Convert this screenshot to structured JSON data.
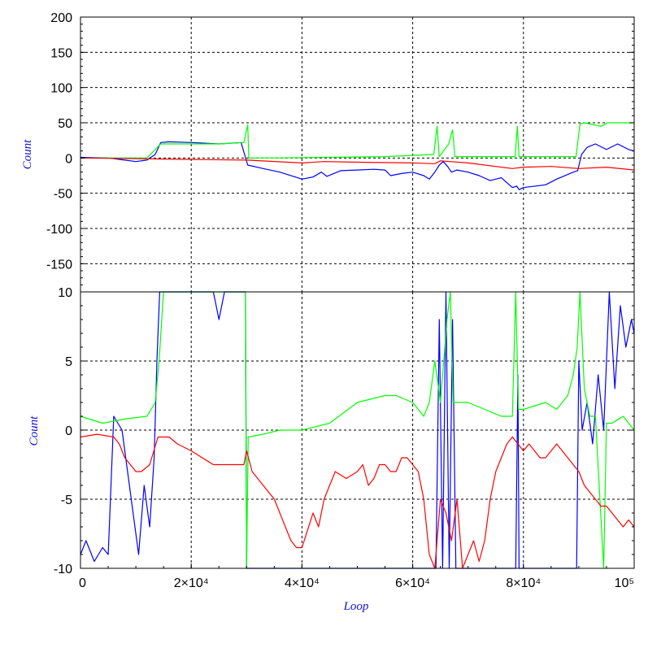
{
  "chart_data": [
    {
      "type": "line",
      "ylabel": "Count",
      "xlabel": "",
      "xlim": [
        0,
        100000
      ],
      "ylim": [
        -190,
        200
      ],
      "grid": true,
      "yticks": [
        "200",
        "150",
        "100",
        "50",
        "0",
        "-50",
        "-100",
        "-150"
      ],
      "ytick_values": [
        200,
        150,
        100,
        50,
        0,
        -50,
        -100,
        -150
      ],
      "series": [
        {
          "color": "#0000ff",
          "x": [
            0,
            5000,
            8000,
            10000,
            12000,
            13500,
            14500,
            16000,
            20000,
            25000,
            29000,
            30200,
            33000,
            36000,
            40000,
            42000,
            43500,
            44500,
            47000,
            50000,
            53000,
            55000,
            56000,
            58000,
            60000,
            62000,
            63000,
            64000,
            64800,
            65500,
            66300,
            67000,
            68000,
            70000,
            72000,
            74000,
            76000,
            78000,
            78800,
            79200,
            80000,
            84000,
            86000,
            89000,
            89800,
            90500,
            91500,
            93000,
            95000,
            97000,
            99000,
            100000
          ],
          "y": [
            1,
            0,
            -3,
            -5,
            -3,
            5,
            22,
            23,
            22,
            20,
            22,
            -10,
            -15,
            -20,
            -30,
            -27,
            -20,
            -26,
            -18,
            -17,
            -16,
            -17,
            -25,
            -22,
            -20,
            -25,
            -30,
            -20,
            -10,
            -5,
            -12,
            -20,
            -17,
            -20,
            -25,
            -32,
            -28,
            -42,
            -40,
            -45,
            -42,
            -38,
            -30,
            -20,
            -18,
            5,
            15,
            20,
            12,
            20,
            12,
            10
          ]
        },
        {
          "color": "#00ff00",
          "x": [
            0,
            12000,
            14500,
            20000,
            25000,
            29500,
            30200,
            30400,
            35000,
            45000,
            55000,
            63800,
            64400,
            64800,
            66500,
            67200,
            67600,
            70000,
            78500,
            78900,
            79200,
            85000,
            89500,
            90200,
            91000,
            94000,
            94800,
            95200,
            100000
          ],
          "y": [
            0,
            0,
            20,
            20,
            20,
            22,
            47,
            0,
            0,
            1,
            2,
            5,
            45,
            2,
            20,
            40,
            2,
            2,
            2,
            45,
            2,
            2,
            2,
            48,
            50,
            45,
            48,
            50,
            50
          ]
        },
        {
          "color": "#ff0000",
          "x": [
            0,
            10000,
            20000,
            30000,
            40000,
            44000,
            50000,
            60000,
            64000,
            65000,
            70000,
            78000,
            80000,
            85000,
            90000,
            95000,
            100000
          ],
          "y": [
            0,
            -1,
            -2,
            -3,
            -7,
            -5,
            -6,
            -7,
            -8,
            -4,
            -7,
            -15,
            -13,
            -12,
            -15,
            -13,
            -17
          ]
        }
      ]
    },
    {
      "type": "line",
      "ylabel": "Count",
      "xlabel": "Loop",
      "xlim": [
        0,
        100000
      ],
      "ylim": [
        -10,
        10
      ],
      "grid": true,
      "yticks": [
        "10",
        "5",
        "0",
        "-5",
        "-10"
      ],
      "ytick_values": [
        10,
        5,
        0,
        -5,
        -10
      ],
      "xticks": [
        "0",
        "2×10⁴",
        "4×10⁴",
        "6×10⁴",
        "8×10⁴",
        "10⁵"
      ],
      "xtick_values": [
        0,
        20000,
        40000,
        60000,
        80000,
        100000
      ],
      "series": [
        {
          "color": "#0000ff",
          "x": [
            0,
            1000,
            2500,
            4000,
            5000,
            6000,
            7500,
            8500,
            9500,
            10500,
            11500,
            12500,
            13300,
            13800,
            14300,
            15000,
            16000,
            22000,
            24000,
            25000,
            26000,
            29800,
            30000,
            30200,
            64200,
            64800,
            65400,
            66000,
            66600,
            67200,
            67800,
            78600,
            79000,
            79200,
            89600,
            90000,
            90600,
            91500,
            92500,
            93500,
            94500,
            95500,
            96500,
            97500,
            98500,
            99500,
            100000
          ],
          "y": [
            -9,
            -8,
            -9.5,
            -8.5,
            -9,
            1,
            0,
            -3,
            -6,
            -9,
            -4,
            -7,
            -2,
            5,
            10,
            12,
            12,
            12,
            10,
            8,
            12,
            12,
            -12,
            -12,
            -12,
            8,
            -12,
            10,
            -12,
            8,
            -12,
            -12,
            4,
            -12,
            -12,
            5,
            0,
            2,
            -1,
            4,
            0,
            10,
            3,
            9,
            6,
            8,
            7
          ]
        },
        {
          "color": "#00ff00",
          "x": [
            0,
            4000,
            8000,
            12000,
            13500,
            14200,
            15000,
            20000,
            25000,
            29800,
            30000,
            30300,
            33000,
            36000,
            40000,
            45000,
            50000,
            55000,
            57000,
            60000,
            62000,
            63000,
            64000,
            65000,
            66200,
            66800,
            67300,
            68000,
            70000,
            73000,
            76000,
            78000,
            78600,
            79100,
            80000,
            84000,
            86000,
            88000,
            89000,
            89700,
            90200,
            91000,
            92000,
            93000,
            94500,
            95000,
            96000,
            98000,
            100000
          ],
          "y": [
            1,
            0.5,
            0.8,
            1,
            2,
            5,
            12,
            12,
            12,
            12,
            -10,
            -0.5,
            -0.3,
            0,
            0,
            0.5,
            2,
            2.5,
            2.5,
            2,
            1,
            2,
            5,
            2,
            8,
            12,
            2,
            2,
            2,
            1.5,
            1,
            1,
            10,
            1.5,
            1.5,
            2,
            1.5,
            2.5,
            4,
            6,
            12,
            3,
            1,
            1,
            -10,
            0.5,
            0.5,
            1,
            0
          ]
        },
        {
          "color": "#ff0000",
          "x": [
            0,
            3000,
            6000,
            7000,
            8000,
            10000,
            11000,
            12500,
            14000,
            16000,
            17500,
            20000,
            22000,
            24000,
            26000,
            28000,
            29500,
            30000,
            31000,
            33000,
            35000,
            36000,
            37000,
            38000,
            39000,
            40000,
            42000,
            43000,
            44000,
            46000,
            48000,
            50000,
            51000,
            52000,
            53000,
            54000,
            55000,
            56000,
            57000,
            58000,
            59000,
            60000,
            61000,
            62000,
            63000,
            64000,
            65000,
            66000,
            67000,
            68000,
            69000,
            70000,
            71000,
            72000,
            73000,
            74000,
            75000,
            76000,
            77000,
            78000,
            79000,
            80000,
            81000,
            82000,
            83000,
            84000,
            85000,
            86000,
            87000,
            88000,
            89000,
            90000,
            91000,
            92000,
            93000,
            94000,
            95000,
            96000,
            97000,
            98000,
            99000,
            100000
          ],
          "y": [
            -0.5,
            -0.3,
            -0.5,
            -1,
            -2,
            -3,
            -3,
            -2.5,
            -0.5,
            -0.5,
            -1,
            -1.5,
            -2,
            -2.5,
            -2.5,
            -2.5,
            -2.5,
            -1.5,
            -3,
            -4,
            -5,
            -6,
            -7,
            -8,
            -8.5,
            -8.5,
            -6,
            -7,
            -5,
            -3,
            -3.5,
            -3,
            -2.5,
            -4,
            -3.5,
            -2.5,
            -2.5,
            -3,
            -3,
            -2,
            -2,
            -2.5,
            -3,
            -5,
            -9,
            -10,
            -5,
            -6,
            -8,
            -5,
            -10,
            -9,
            -8,
            -9.5,
            -8,
            -5,
            -3,
            -2,
            -1,
            -0.5,
            -1,
            -1.5,
            -1,
            -1.5,
            -2,
            -2,
            -1.5,
            -1,
            -1.5,
            -2,
            -2.5,
            -3,
            -4,
            -4.5,
            -5,
            -5.5,
            -5.5,
            -6,
            -6.5,
            -7,
            -6.5,
            -7
          ]
        },
        {
          "color": "#ff0000",
          "x": [
            0,
            400
          ],
          "y": [
            0,
            0
          ]
        }
      ]
    }
  ]
}
